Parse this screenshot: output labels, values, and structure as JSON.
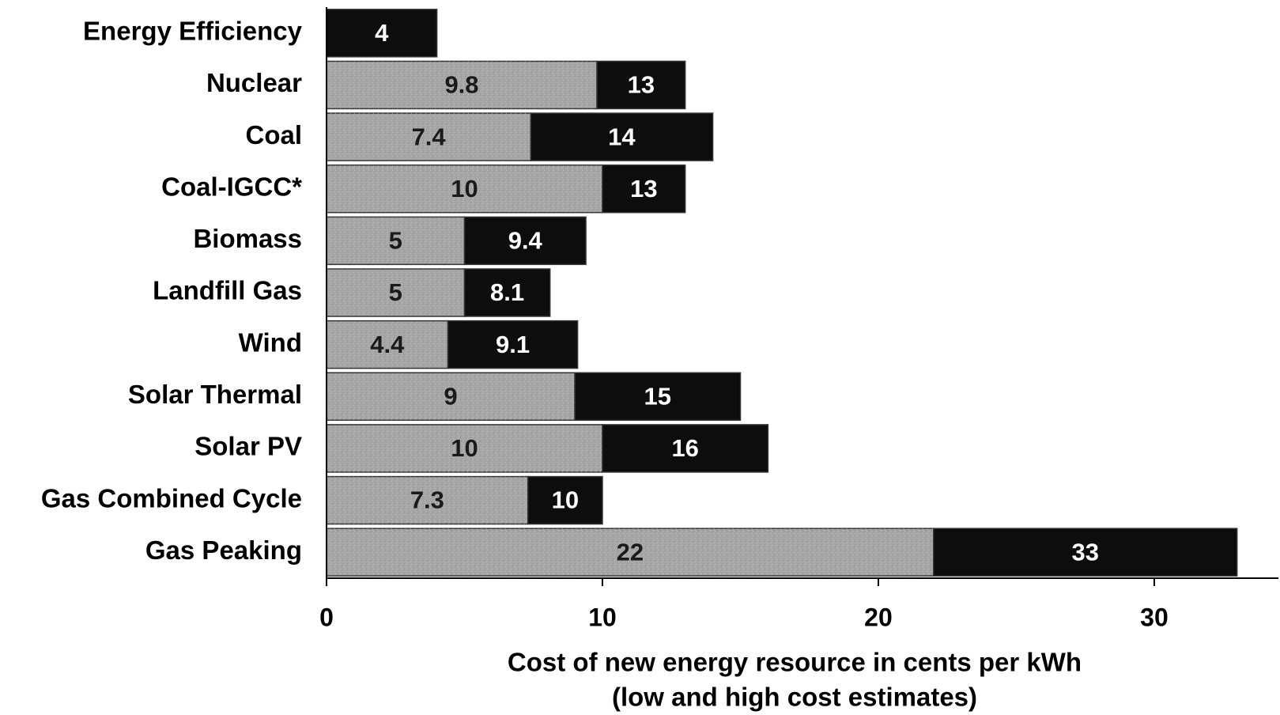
{
  "chart_data": {
    "type": "floating_bar",
    "categories": [
      "Energy Efficiency",
      "Nuclear",
      "Coal",
      "Coal-IGCC*",
      "Biomass",
      "Landfill Gas",
      "Wind",
      "Solar Thermal",
      "Solar PV",
      "Gas Combined Cycle",
      "Gas Peaking"
    ],
    "series": [
      {
        "color": "#a6a6a6",
        "label_color": "#1a1a1a",
        "values": [
          null,
          9.8,
          7.4,
          10,
          5,
          5,
          4.4,
          9,
          10,
          7.3,
          22
        ]
      },
      {
        "color": "#0d0d0d",
        "label_color": "#ffffff",
        "values": [
          4,
          13,
          14,
          13,
          9.4,
          8.1,
          9.1,
          15,
          16,
          10,
          33
        ]
      }
    ],
    "xlim": [
      0,
      34.5
    ],
    "xticks": [
      0,
      10,
      20,
      30
    ],
    "xlabel": [
      "Cost of new energy resource in cents per kWh",
      "(low and high cost estimates)"
    ]
  }
}
